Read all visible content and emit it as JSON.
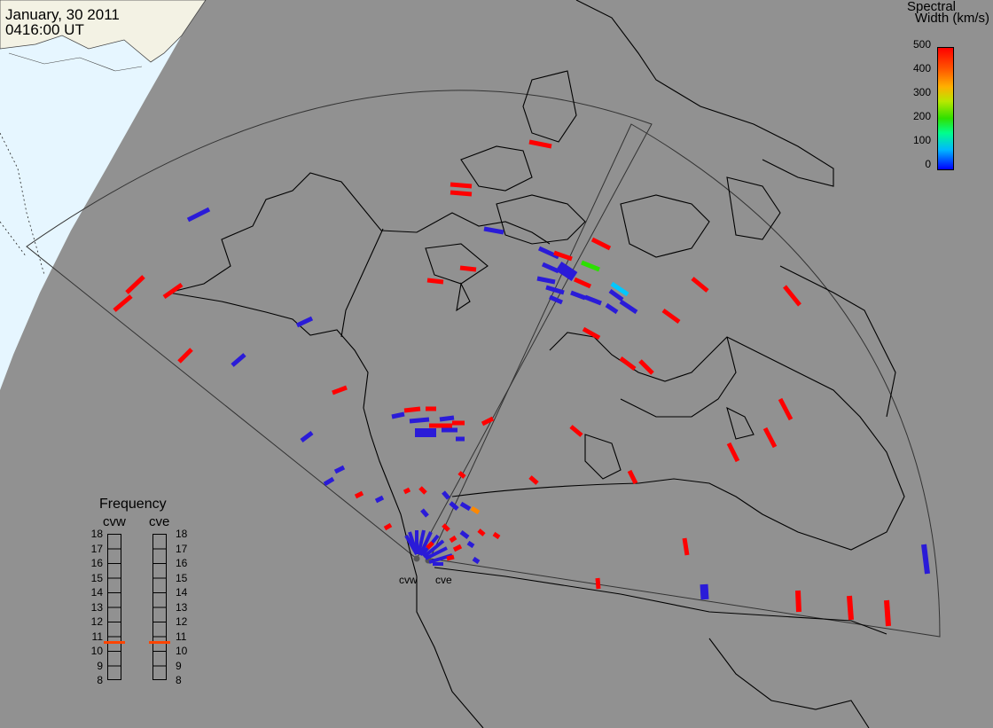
{
  "title": {
    "date": "January, 30 2011",
    "time": "0416:00 UT"
  },
  "colorbar": {
    "title_line1": "Spectral",
    "title_line2": "Width (km/s)",
    "ticks": [
      "500",
      "400",
      "300",
      "200",
      "100",
      "0"
    ],
    "min": 0,
    "max": 500,
    "colors": [
      "#0000ff",
      "#00b7ff",
      "#00ff8c",
      "#2fe000",
      "#b8e800",
      "#ffb000",
      "#ff5a00",
      "#ff0000"
    ]
  },
  "frequency_panel": {
    "title": "Frequency",
    "radars": [
      {
        "label": "cvw",
        "frequency_mhz": 10.6
      },
      {
        "label": "cve",
        "frequency_mhz": 10.6
      }
    ],
    "scale": [
      "18",
      "17",
      "16",
      "15",
      "14",
      "13",
      "12",
      "11",
      "10",
      "9",
      "8"
    ],
    "marker_color": "#ff4400"
  },
  "radar_sites": [
    {
      "label": "cvw"
    },
    {
      "label": "cve"
    }
  ],
  "colors": {
    "background": "#919191",
    "ocean": "#e6f6ff",
    "land": "#f3f2e4",
    "coastline": "#000000"
  }
}
